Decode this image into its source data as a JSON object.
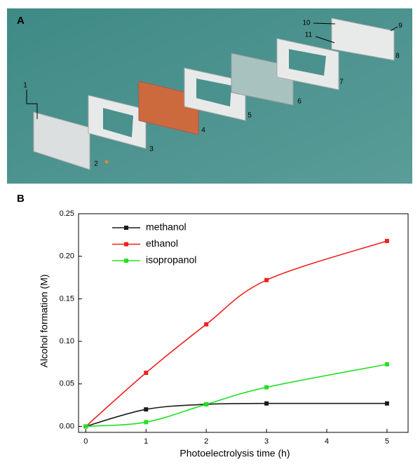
{
  "panel_a": {
    "label": "A",
    "callouts": [
      "1",
      "2",
      "3",
      "4",
      "5",
      "6",
      "7",
      "8",
      "9",
      "10",
      "11"
    ]
  },
  "chart_data": {
    "type": "line",
    "panel": "B",
    "x_label": "Photoelectrolysis time (h)",
    "y_label": "Alcohol formation (M)",
    "x": [
      0,
      1,
      2,
      3,
      5
    ],
    "series": [
      {
        "name": "methanol",
        "color": "#1a1a1a",
        "values": [
          0,
          0.02,
          0.026,
          0.027,
          0.027
        ]
      },
      {
        "name": "ethanol",
        "color": "#f02020",
        "values": [
          0,
          0.063,
          0.12,
          0.172,
          0.218
        ]
      },
      {
        "name": "isopropanol",
        "color": "#22e022",
        "values": [
          0,
          0.005,
          0.026,
          0.046,
          0.073
        ]
      }
    ],
    "xlim": [
      -0.12,
      5.35
    ],
    "ylim": [
      -0.007,
      0.25
    ],
    "xticks": [
      0,
      1,
      2,
      3,
      4,
      5
    ],
    "yticks": [
      {
        "value": 0,
        "label": "0.00"
      },
      0.05,
      {
        "value": 0.1,
        "label": "0.10"
      },
      0.15,
      {
        "value": 0.2,
        "label": "0.20"
      },
      0.25
    ],
    "legend": "upper left"
  }
}
